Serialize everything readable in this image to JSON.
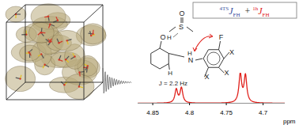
{
  "equation": {
    "terms": [
      {
        "superscript": "4TS",
        "symbol": "J",
        "subscript": "FH",
        "color": "#3a4fa0"
      },
      {
        "superscript": "1h",
        "symbol": "J",
        "subscript": "FH",
        "color": "#e0201b"
      }
    ],
    "operator": "+"
  },
  "structure": {
    "sulfur": "S",
    "sulfoxide_oxygen": "O",
    "hydroxyl_oxygen": "O",
    "hydroxyl_hydrogen": "H",
    "methine_hydrogen": "H",
    "amine_nitrogen": "N",
    "amine_hydrogen": "H",
    "fluorine": "F",
    "substituents": [
      "X",
      "X",
      "X"
    ]
  },
  "chart_data": {
    "type": "nmr",
    "annotation": "J = 2.2 Hz",
    "xlabel": "ppm",
    "xlim": [
      4.87,
      4.67
    ],
    "xticks": [
      4.85,
      4.8,
      4.75,
      4.7
    ],
    "ylim": [
      0,
      1
    ],
    "tick_labels": "x",
    "color": "#e0201b",
    "peaks": [
      {
        "ppm": 4.818,
        "height": 0.45
      },
      {
        "ppm": 4.811,
        "height": 0.5
      },
      {
        "ppm": 4.731,
        "height": 0.95
      },
      {
        "ppm": 4.724,
        "height": 0.9
      }
    ]
  }
}
